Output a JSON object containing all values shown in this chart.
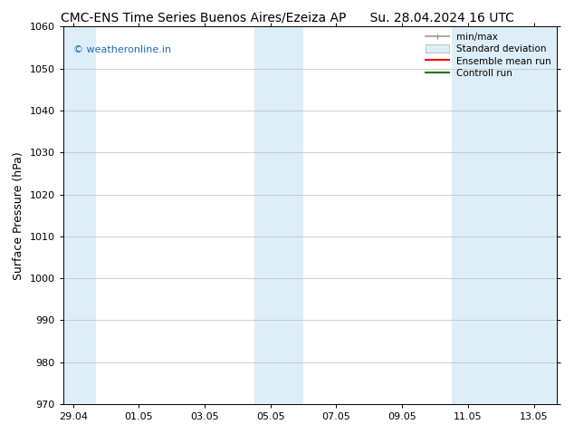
{
  "title_left": "CMC-ENS Time Series Buenos Aires/Ezeiza AP",
  "title_right": "Su. 28.04.2024 16 UTC",
  "ylabel": "Surface Pressure (hPa)",
  "ylim": [
    970,
    1060
  ],
  "yticks": [
    970,
    980,
    990,
    1000,
    1010,
    1020,
    1030,
    1040,
    1050,
    1060
  ],
  "xtick_labels": [
    "29.04",
    "01.05",
    "03.05",
    "05.05",
    "07.05",
    "09.05",
    "11.05",
    "13.05"
  ],
  "xtick_positions": [
    0,
    2,
    4,
    6,
    8,
    10,
    12,
    14
  ],
  "xlim": [
    -0.3,
    14.7
  ],
  "shaded_bands": [
    {
      "x_start": 5.5,
      "x_end": 7.0,
      "color": "#ddeef8"
    },
    {
      "x_start": 11.5,
      "x_end": 14.7,
      "color": "#ddeef8"
    }
  ],
  "left_band": {
    "x_start": -0.3,
    "x_end": 0.7,
    "color": "#ddeef8"
  },
  "watermark_text": "© weatheronline.in",
  "watermark_color": "#1a6eb5",
  "watermark_fontsize": 8,
  "legend_items": [
    {
      "label": "min/max",
      "color": "#aaaaaa",
      "type": "errorbar"
    },
    {
      "label": "Standard deviation",
      "color": "#ccddee",
      "type": "bar"
    },
    {
      "label": "Ensemble mean run",
      "color": "red",
      "type": "line"
    },
    {
      "label": "Controll run",
      "color": "green",
      "type": "line"
    }
  ],
  "bg_color": "#ffffff",
  "plot_bg_color": "#ffffff",
  "grid_color": "#bbbbbb",
  "title_fontsize": 10,
  "axis_label_fontsize": 9,
  "tick_fontsize": 8,
  "legend_fontsize": 7.5
}
